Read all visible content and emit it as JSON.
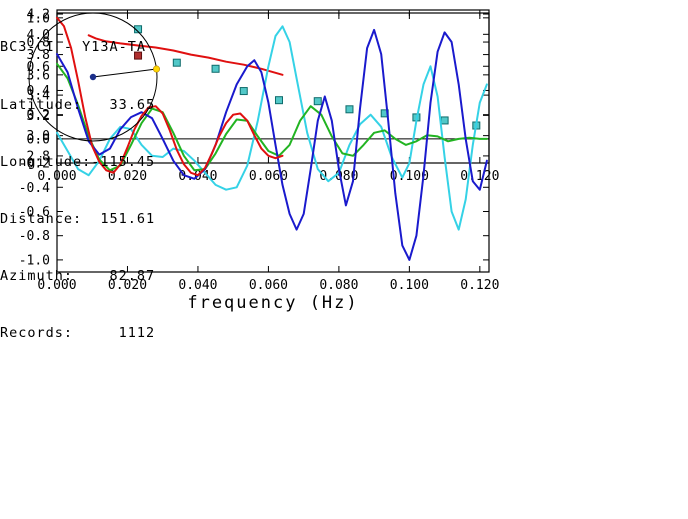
{
  "info_panel": {
    "title": "BC3-CI - Y13A-TA",
    "rows": [
      {
        "label": "Latitude:",
        "value": "33.65"
      },
      {
        "label": "Longitude:",
        "value": "-115.45"
      },
      {
        "label": "Distance:",
        "value": "151.61"
      },
      {
        "label": "Azimuth:",
        "value": "82.87"
      },
      {
        "label": "Records:",
        "value": "1112"
      }
    ]
  },
  "chart_data": [
    {
      "id": "dispersion",
      "type": "scatter",
      "xlim": [
        0,
        0.1226
      ],
      "ylim": [
        2.73,
        4.24
      ],
      "xticks": {
        "values": [
          0,
          0.02,
          0.04,
          0.06,
          0.08,
          0.1,
          0.12
        ],
        "labels": [
          "0.000",
          "0.020",
          "0.040",
          "0.060",
          "0.080",
          "0.100",
          "0.120"
        ]
      },
      "yticks": {
        "values": [
          2.8,
          3.0,
          3.2,
          3.4,
          3.6,
          3.8,
          4.0,
          4.2
        ],
        "labels": [
          "2.8",
          "3.0",
          "3.2",
          "3.4",
          "3.6",
          "3.8",
          "4.0",
          "4.2"
        ]
      },
      "series": [
        {
          "name": "model-curve",
          "type": "line",
          "color": "#e01010",
          "width": 2,
          "points": [
            [
              0.009,
              3.99
            ],
            [
              0.011,
              3.96
            ],
            [
              0.014,
              3.93
            ],
            [
              0.018,
              3.91
            ],
            [
              0.023,
              3.89
            ],
            [
              0.028,
              3.87
            ],
            [
              0.033,
              3.84
            ],
            [
              0.038,
              3.8
            ],
            [
              0.043,
              3.77
            ],
            [
              0.048,
              3.73
            ],
            [
              0.053,
              3.7
            ],
            [
              0.058,
              3.66
            ],
            [
              0.062,
              3.62
            ],
            [
              0.064,
              3.6
            ]
          ]
        },
        {
          "name": "group-velocity-measurements",
          "type": "points",
          "marker": "square",
          "color": "#52c8c8",
          "edge": "#0e6b6b",
          "points": [
            [
              0.023,
              4.05
            ],
            [
              0.034,
              3.72
            ],
            [
              0.045,
              3.66
            ],
            [
              0.053,
              3.44
            ],
            [
              0.063,
              3.35
            ],
            [
              0.074,
              3.34
            ],
            [
              0.083,
              3.26
            ],
            [
              0.093,
              3.22
            ],
            [
              0.102,
              3.18
            ],
            [
              0.11,
              3.15
            ],
            [
              0.119,
              3.1
            ]
          ]
        },
        {
          "name": "selected-measurement",
          "type": "points",
          "marker": "square",
          "color": "#b03030",
          "edge": "#5e1010",
          "points": [
            [
              0.023,
              3.79
            ]
          ]
        }
      ]
    },
    {
      "id": "waveforms",
      "type": "line",
      "xlabel": "frequency (Hz)",
      "xlim": [
        0,
        0.1226
      ],
      "ylim": [
        -1.1,
        1.04
      ],
      "zero_line": true,
      "xticks": {
        "values": [
          0,
          0.02,
          0.04,
          0.06,
          0.08,
          0.1,
          0.12
        ],
        "labels": [
          "0.000",
          "0.020",
          "0.040",
          "0.060",
          "0.080",
          "0.100",
          "0.120"
        ]
      },
      "yticks": {
        "values": [
          -1.0,
          -0.8,
          -0.6,
          -0.4,
          -0.2,
          0.0,
          0.2,
          0.4,
          0.6,
          0.8,
          1.0
        ],
        "labels": [
          "-1.0",
          "-0.8",
          "-0.6",
          "-0.4",
          "-0.2",
          "0.0",
          "0.2",
          "0.4",
          "0.6",
          "0.8",
          "1.0"
        ]
      },
      "series": [
        {
          "name": "trace-cyan",
          "type": "line",
          "color": "#35d2e6",
          "width": 2,
          "points": [
            [
              0,
              0.05
            ],
            [
              0.003,
              -0.1
            ],
            [
              0.006,
              -0.25
            ],
            [
              0.009,
              -0.3
            ],
            [
              0.012,
              -0.18
            ],
            [
              0.015,
              0.0
            ],
            [
              0.018,
              0.1
            ],
            [
              0.021,
              0.08
            ],
            [
              0.024,
              -0.05
            ],
            [
              0.027,
              -0.14
            ],
            [
              0.03,
              -0.15
            ],
            [
              0.033,
              -0.08
            ],
            [
              0.036,
              -0.1
            ],
            [
              0.039,
              -0.18
            ],
            [
              0.042,
              -0.28
            ],
            [
              0.045,
              -0.38
            ],
            [
              0.048,
              -0.42
            ],
            [
              0.051,
              -0.4
            ],
            [
              0.054,
              -0.22
            ],
            [
              0.057,
              0.15
            ],
            [
              0.06,
              0.6
            ],
            [
              0.062,
              0.85
            ],
            [
              0.064,
              0.93
            ],
            [
              0.066,
              0.8
            ],
            [
              0.068,
              0.5
            ],
            [
              0.071,
              0.05
            ],
            [
              0.074,
              -0.25
            ],
            [
              0.077,
              -0.35
            ],
            [
              0.08,
              -0.28
            ],
            [
              0.083,
              -0.05
            ],
            [
              0.086,
              0.12
            ],
            [
              0.089,
              0.2
            ],
            [
              0.092,
              0.1
            ],
            [
              0.095,
              -0.15
            ],
            [
              0.098,
              -0.32
            ],
            [
              0.1,
              -0.2
            ],
            [
              0.102,
              0.15
            ],
            [
              0.104,
              0.45
            ],
            [
              0.106,
              0.6
            ],
            [
              0.108,
              0.35
            ],
            [
              0.11,
              -0.15
            ],
            [
              0.112,
              -0.6
            ],
            [
              0.114,
              -0.75
            ],
            [
              0.116,
              -0.5
            ],
            [
              0.118,
              -0.05
            ],
            [
              0.12,
              0.3
            ],
            [
              0.122,
              0.45
            ]
          ]
        },
        {
          "name": "trace-green",
          "type": "line",
          "color": "#22b422",
          "width": 2,
          "points": [
            [
              0,
              0.62
            ],
            [
              0.003,
              0.5
            ],
            [
              0.006,
              0.28
            ],
            [
              0.009,
              0.02
            ],
            [
              0.012,
              -0.17
            ],
            [
              0.015,
              -0.26
            ],
            [
              0.018,
              -0.22
            ],
            [
              0.021,
              -0.05
            ],
            [
              0.024,
              0.13
            ],
            [
              0.027,
              0.25
            ],
            [
              0.03,
              0.22
            ],
            [
              0.033,
              0.05
            ],
            [
              0.036,
              -0.14
            ],
            [
              0.039,
              -0.26
            ],
            [
              0.042,
              -0.25
            ],
            [
              0.045,
              -0.12
            ],
            [
              0.048,
              0.04
            ],
            [
              0.051,
              0.16
            ],
            [
              0.054,
              0.15
            ],
            [
              0.057,
              0.02
            ],
            [
              0.06,
              -0.1
            ],
            [
              0.063,
              -0.14
            ],
            [
              0.066,
              -0.05
            ],
            [
              0.069,
              0.15
            ],
            [
              0.072,
              0.27
            ],
            [
              0.075,
              0.2
            ],
            [
              0.078,
              0.02
            ],
            [
              0.081,
              -0.12
            ],
            [
              0.084,
              -0.14
            ],
            [
              0.087,
              -0.05
            ],
            [
              0.09,
              0.05
            ],
            [
              0.093,
              0.07
            ],
            [
              0.096,
              0.0
            ],
            [
              0.099,
              -0.05
            ],
            [
              0.102,
              -0.02
            ],
            [
              0.105,
              0.03
            ],
            [
              0.108,
              0.02
            ],
            [
              0.111,
              -0.02
            ],
            [
              0.114,
              0.0
            ],
            [
              0.117,
              0.01
            ],
            [
              0.12,
              0.0
            ],
            [
              0.122,
              0.0
            ]
          ]
        },
        {
          "name": "trace-dark-blue",
          "type": "line",
          "color": "#1a1acd",
          "width": 2,
          "points": [
            [
              0,
              0.7
            ],
            [
              0.003,
              0.55
            ],
            [
              0.006,
              0.25
            ],
            [
              0.009,
              -0.02
            ],
            [
              0.012,
              -0.13
            ],
            [
              0.015,
              -0.08
            ],
            [
              0.018,
              0.08
            ],
            [
              0.021,
              0.18
            ],
            [
              0.024,
              0.22
            ],
            [
              0.027,
              0.17
            ],
            [
              0.03,
              0.0
            ],
            [
              0.033,
              -0.18
            ],
            [
              0.036,
              -0.3
            ],
            [
              0.039,
              -0.33
            ],
            [
              0.042,
              -0.25
            ],
            [
              0.045,
              -0.05
            ],
            [
              0.048,
              0.22
            ],
            [
              0.051,
              0.45
            ],
            [
              0.054,
              0.6
            ],
            [
              0.056,
              0.65
            ],
            [
              0.058,
              0.55
            ],
            [
              0.06,
              0.3
            ],
            [
              0.062,
              -0.05
            ],
            [
              0.064,
              -0.38
            ],
            [
              0.066,
              -0.62
            ],
            [
              0.068,
              -0.75
            ],
            [
              0.07,
              -0.62
            ],
            [
              0.072,
              -0.25
            ],
            [
              0.074,
              0.15
            ],
            [
              0.076,
              0.35
            ],
            [
              0.078,
              0.15
            ],
            [
              0.08,
              -0.25
            ],
            [
              0.082,
              -0.55
            ],
            [
              0.084,
              -0.35
            ],
            [
              0.086,
              0.25
            ],
            [
              0.088,
              0.75
            ],
            [
              0.09,
              0.9
            ],
            [
              0.092,
              0.7
            ],
            [
              0.094,
              0.15
            ],
            [
              0.096,
              -0.45
            ],
            [
              0.098,
              -0.88
            ],
            [
              0.1,
              -1.0
            ],
            [
              0.102,
              -0.8
            ],
            [
              0.104,
              -0.3
            ],
            [
              0.106,
              0.3
            ],
            [
              0.108,
              0.72
            ],
            [
              0.11,
              0.88
            ],
            [
              0.112,
              0.8
            ],
            [
              0.114,
              0.45
            ],
            [
              0.116,
              0.0
            ],
            [
              0.118,
              -0.35
            ],
            [
              0.12,
              -0.42
            ],
            [
              0.122,
              -0.18
            ]
          ]
        },
        {
          "name": "trace-red",
          "type": "line",
          "color": "#e01010",
          "width": 2,
          "points": [
            [
              0,
              1.0
            ],
            [
              0.002,
              0.93
            ],
            [
              0.004,
              0.75
            ],
            [
              0.006,
              0.48
            ],
            [
              0.008,
              0.18
            ],
            [
              0.01,
              -0.06
            ],
            [
              0.012,
              -0.19
            ],
            [
              0.014,
              -0.26
            ],
            [
              0.016,
              -0.28
            ],
            [
              0.018,
              -0.21
            ],
            [
              0.02,
              -0.07
            ],
            [
              0.022,
              0.08
            ],
            [
              0.024,
              0.19
            ],
            [
              0.026,
              0.26
            ],
            [
              0.028,
              0.27
            ],
            [
              0.03,
              0.21
            ],
            [
              0.032,
              0.07
            ],
            [
              0.034,
              -0.09
            ],
            [
              0.036,
              -0.21
            ],
            [
              0.038,
              -0.28
            ],
            [
              0.04,
              -0.3
            ],
            [
              0.042,
              -0.24
            ],
            [
              0.044,
              -0.12
            ],
            [
              0.046,
              0.02
            ],
            [
              0.048,
              0.13
            ],
            [
              0.05,
              0.2
            ],
            [
              0.052,
              0.21
            ],
            [
              0.054,
              0.15
            ],
            [
              0.056,
              0.03
            ],
            [
              0.058,
              -0.08
            ],
            [
              0.06,
              -0.14
            ],
            [
              0.062,
              -0.16
            ],
            [
              0.064,
              -0.14
            ]
          ]
        }
      ]
    },
    {
      "id": "azimuth-circle",
      "type": "polar",
      "azimuth_deg": 82.87,
      "circle_color": "#000000",
      "center_dot_color": "#1b2f8a",
      "marker_dot_color": "#ffd700"
    }
  ]
}
